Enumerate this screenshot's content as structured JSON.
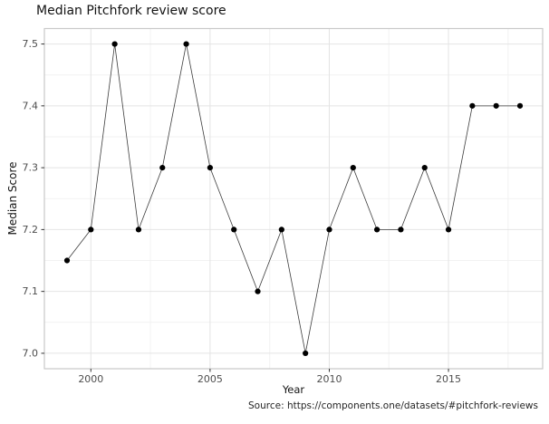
{
  "chart_data": {
    "type": "line",
    "title": "Median Pitchfork review score",
    "xlabel": "Year",
    "ylabel": "Median Score",
    "caption": "Source: https://components.one/datasets/#pitchfork-reviews",
    "x": [
      1999,
      2000,
      2001,
      2002,
      2003,
      2004,
      2005,
      2006,
      2007,
      2008,
      2009,
      2010,
      2011,
      2012,
      2013,
      2014,
      2015,
      2016,
      2017,
      2018
    ],
    "y": [
      7.15,
      7.2,
      7.5,
      7.2,
      7.3,
      7.5,
      7.3,
      7.2,
      7.1,
      7.2,
      7.0,
      7.2,
      7.3,
      7.2,
      7.2,
      7.3,
      7.2,
      7.4,
      7.4,
      7.4
    ],
    "xlim": [
      1998.05,
      2018.95
    ],
    "ylim": [
      6.975,
      7.525
    ],
    "x_ticks": {
      "values": [
        2000,
        2005,
        2010,
        2015
      ],
      "labels": [
        "2000",
        "2005",
        "2010",
        "2015"
      ]
    },
    "x_minor_ticks": [
      2002.5,
      2007.5,
      2012.5,
      2017.5
    ],
    "y_ticks": {
      "values": [
        7.0,
        7.1,
        7.2,
        7.3,
        7.4,
        7.5
      ],
      "labels": [
        "7.0",
        "7.1",
        "7.2",
        "7.3",
        "7.4",
        "7.5"
      ]
    },
    "y_minor_ticks": [
      7.05,
      7.15,
      7.25,
      7.35,
      7.45
    ],
    "grid": "major+minor",
    "legend": "none",
    "style": {
      "background": "#ffffff",
      "panel_background": "#ffffff",
      "panel_border": "#c9c9c9",
      "grid_major": "#e4e4e4",
      "grid_minor": "#f2f2f2",
      "line_color": "#3c3c3c",
      "point_color": "#000000",
      "tick_color": "#333333",
      "tick_label_color": "#4d4d4d",
      "axis_title_color": "#131313",
      "title_color": "#131313",
      "caption_color": "#262626"
    }
  }
}
